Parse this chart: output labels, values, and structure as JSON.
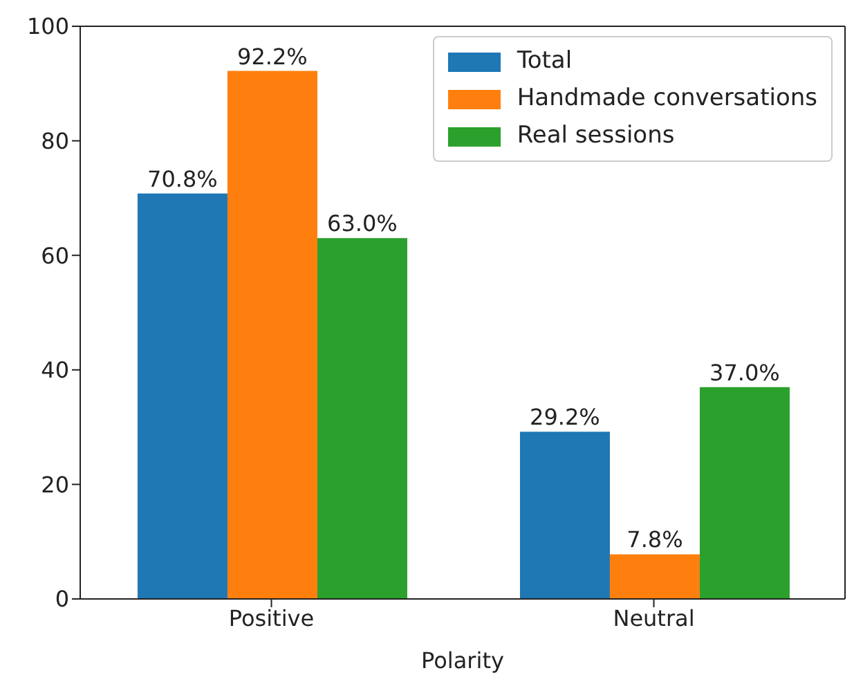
{
  "chart_data": {
    "type": "bar",
    "xlabel": "Polarity",
    "categories": [
      "Positive",
      "Neutral"
    ],
    "series": [
      {
        "name": "Total",
        "color": "#1f77b4",
        "values": [
          70.8,
          29.2
        ],
        "value_labels": [
          "70.8%",
          "29.2%"
        ]
      },
      {
        "name": "Handmade conversations",
        "color": "#ff7f0e",
        "values": [
          92.2,
          7.8
        ],
        "value_labels": [
          "92.2%",
          "7.8%"
        ]
      },
      {
        "name": "Real sessions",
        "color": "#2ca02c",
        "values": [
          63.0,
          37.0
        ],
        "value_labels": [
          "63.0%",
          "37.0%"
        ]
      }
    ],
    "ylim": [
      0,
      100
    ],
    "yticks": [
      0,
      20,
      40,
      60,
      80,
      100
    ],
    "grid": false,
    "legend": "top right"
  }
}
